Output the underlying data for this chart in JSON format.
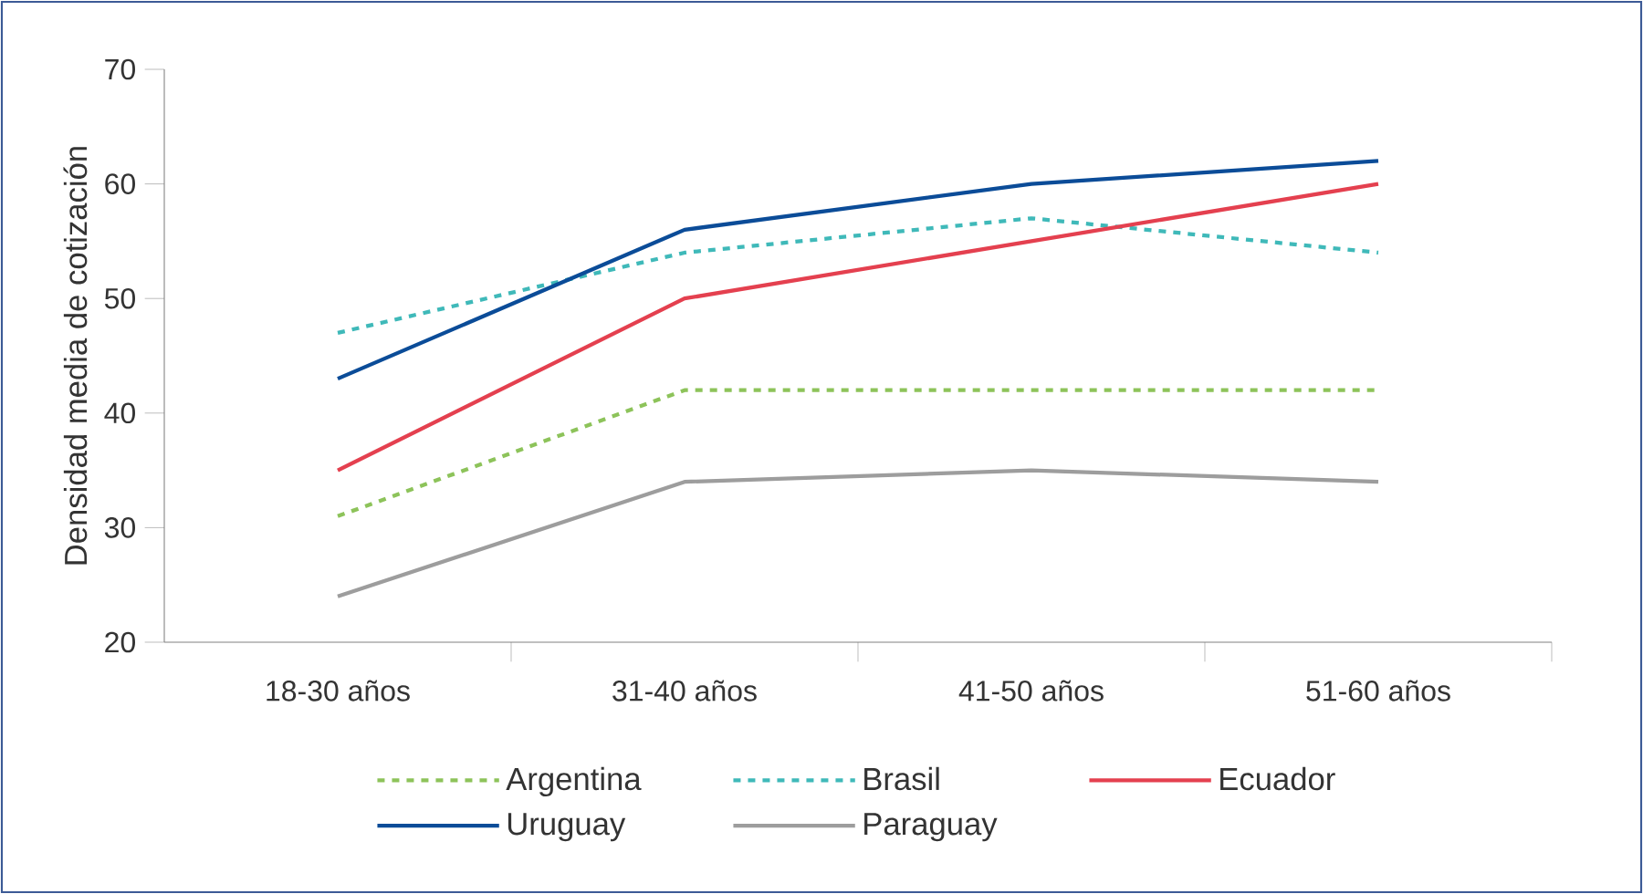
{
  "chart_data": {
    "type": "line",
    "ylabel": "Densidad media de cotización",
    "categories": [
      "18-30 años",
      "31-40 años",
      "41-50 años",
      "51-60 años"
    ],
    "ylim": [
      20,
      70
    ],
    "yticks": [
      20,
      30,
      40,
      50,
      60,
      70
    ],
    "grid": false,
    "legend": "bottom",
    "series": [
      {
        "name": "Argentina",
        "color": "#8dc35a",
        "line_style": "dashed",
        "values": [
          31,
          42,
          42,
          42
        ]
      },
      {
        "name": "Brasil",
        "color": "#3fb9b9",
        "line_style": "dashed",
        "values": [
          47,
          54,
          57,
          54
        ]
      },
      {
        "name": "Ecuador",
        "color": "#e4404f",
        "line_style": "solid",
        "values": [
          35,
          50,
          55,
          60
        ]
      },
      {
        "name": "Uruguay",
        "color": "#0b4c98",
        "line_style": "solid",
        "values": [
          43,
          56,
          60,
          62
        ]
      },
      {
        "name": "Paraguay",
        "color": "#9d9d9d",
        "line_style": "solid",
        "values": [
          24,
          34,
          35,
          34
        ]
      }
    ]
  }
}
